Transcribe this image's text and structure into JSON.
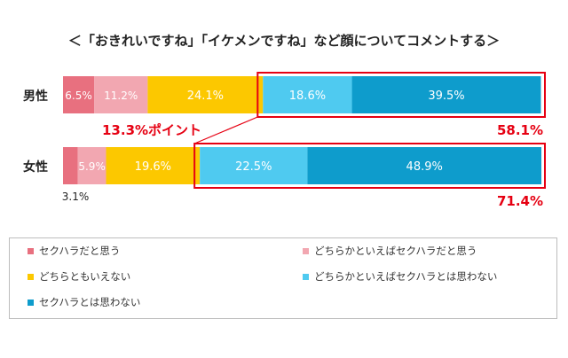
{
  "title": "＜「おきれいですね」「イケメンですね」など顔についてコメントする＞",
  "chart_data": {
    "type": "bar",
    "orientation": "horizontal",
    "stacked": true,
    "unit": "%",
    "categories": [
      "男性",
      "女性"
    ],
    "series": [
      {
        "name": "セクハラだと思う",
        "color": "#e8707f",
        "values": [
          6.5,
          3.1
        ]
      },
      {
        "name": "どちらかといえばセクハラだと思う",
        "color": "#f2a7b1",
        "values": [
          11.2,
          5.9
        ]
      },
      {
        "name": "どちらともいえない",
        "color": "#fcc800",
        "values": [
          24.1,
          19.6
        ]
      },
      {
        "name": "どちらかといえばセクハラとは思わない",
        "color": "#4fcaf0",
        "values": [
          18.6,
          22.5
        ]
      },
      {
        "name": "セクハラとは思わない",
        "color": "#0e9ccc",
        "values": [
          39.5,
          48.9
        ]
      }
    ],
    "value_labels": [
      [
        "6.5%",
        "11.2%",
        "24.1%",
        "18.6%",
        "39.5%"
      ],
      [
        "3.1%",
        "5.9%",
        "19.6%",
        "22.5%",
        "48.9%"
      ]
    ],
    "annotations": {
      "men_total": "58.1%",
      "women_total": "71.4%",
      "difference": "13.3%ポイント"
    },
    "highlight_color": "#e60012",
    "legend_position": "bottom"
  }
}
